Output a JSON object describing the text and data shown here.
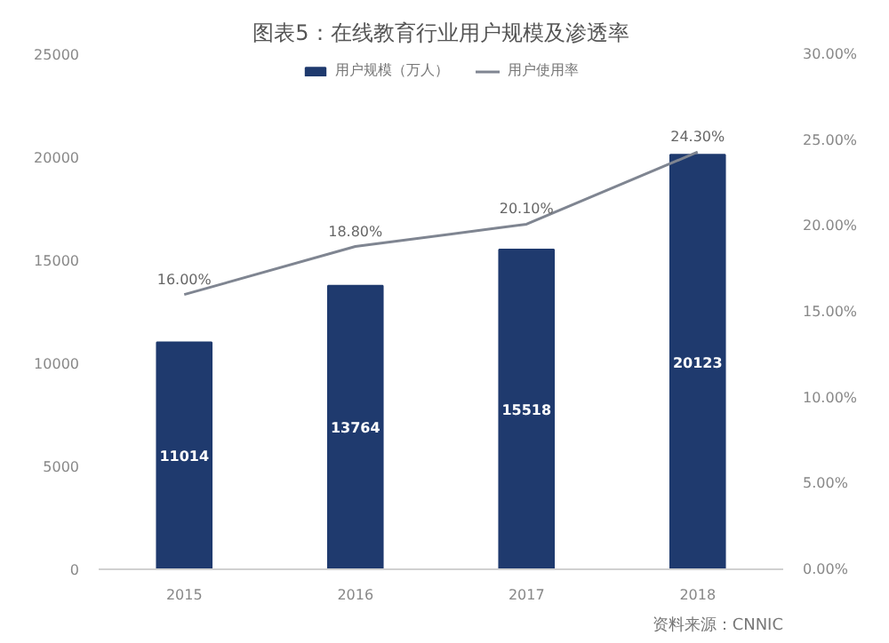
{
  "chart_data": {
    "type": "bar",
    "title": "图表5：在线教育行业用户规模及渗透率",
    "categories": [
      "2015",
      "2016",
      "2017",
      "2018"
    ],
    "series": [
      {
        "name": "用户规模（万人）",
        "color": "#1f3a6e",
        "values": [
          11014,
          13764,
          15518,
          20123
        ],
        "data_labels": true
      },
      {
        "name": "用户使用率",
        "type": "line",
        "axis": "y2",
        "color": "#7f8591",
        "values": [
          16.0,
          18.8,
          20.1,
          24.3
        ],
        "value_labels": [
          "16.00%",
          "18.80%",
          "20.10%",
          "24.30%"
        ]
      }
    ],
    "ylim": [
      0,
      25000
    ],
    "yticks": [
      0,
      5000,
      10000,
      15000,
      20000,
      25000
    ],
    "y2lim": [
      0,
      30
    ],
    "y2ticks": [
      {
        "value": 0,
        "label": "0.00%"
      },
      {
        "value": 5,
        "label": "5.00%"
      },
      {
        "value": 10,
        "label": "10.00%"
      },
      {
        "value": 15,
        "label": "15.00%"
      },
      {
        "value": 20,
        "label": "20.00%"
      },
      {
        "value": 25,
        "label": "25.00%"
      },
      {
        "value": 30,
        "label": "30.00%"
      }
    ],
    "legend": "top",
    "grid": false,
    "annotations": [
      "资料来源：CNNIC"
    ]
  }
}
